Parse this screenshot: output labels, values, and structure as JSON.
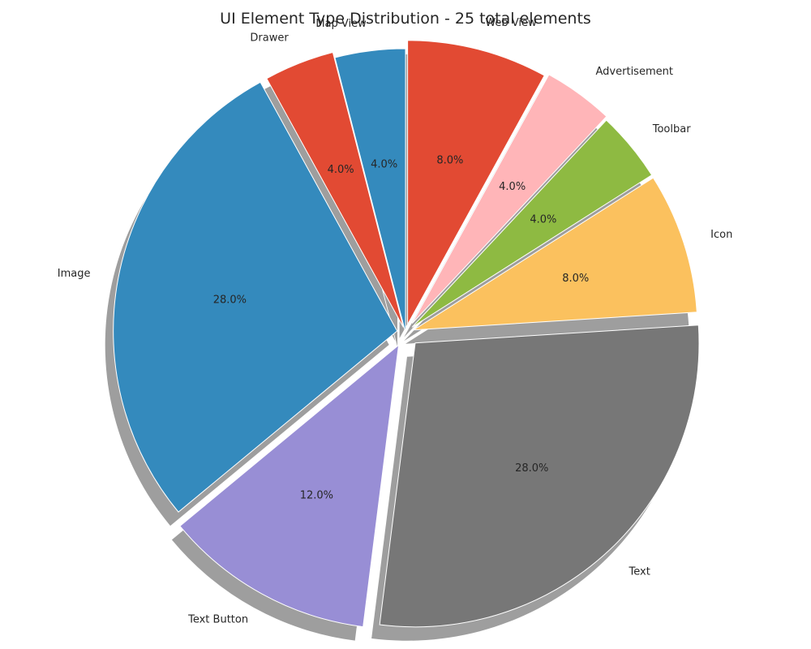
{
  "chart_data": {
    "type": "pie",
    "title": "UI Element Type Distribution - 25 total elements",
    "start_angle_deg": 90,
    "direction": "counterclockwise",
    "shadow": true,
    "slices": [
      {
        "label": "Map View",
        "value": 4.0,
        "pct_label": "4.0%",
        "color": "#348abd",
        "explode": 0.0
      },
      {
        "label": "Drawer",
        "value": 4.0,
        "pct_label": "4.0%",
        "color": "#e24a33",
        "explode": 0.02
      },
      {
        "label": "Image",
        "value": 28.0,
        "pct_label": "28.0%",
        "color": "#348abd",
        "explode": 0.03
      },
      {
        "label": "Text Button",
        "value": 12.0,
        "pct_label": "12.0%",
        "color": "#988ed5",
        "explode": 0.05
      },
      {
        "label": "Text",
        "value": 28.0,
        "pct_label": "28.0%",
        "color": "#777777",
        "explode": 0.05
      },
      {
        "label": "Icon",
        "value": 8.0,
        "pct_label": "8.0%",
        "color": "#fbc15e",
        "explode": 0.03
      },
      {
        "label": "Toolbar",
        "value": 4.0,
        "pct_label": "4.0%",
        "color": "#8eba42",
        "explode": 0.03
      },
      {
        "label": "Advertisement",
        "value": 4.0,
        "pct_label": "4.0%",
        "color": "#ffb5b8",
        "explode": 0.04
      },
      {
        "label": "Web View",
        "value": 8.0,
        "pct_label": "8.0%",
        "color": "#e24a33",
        "explode": 0.03
      }
    ]
  }
}
